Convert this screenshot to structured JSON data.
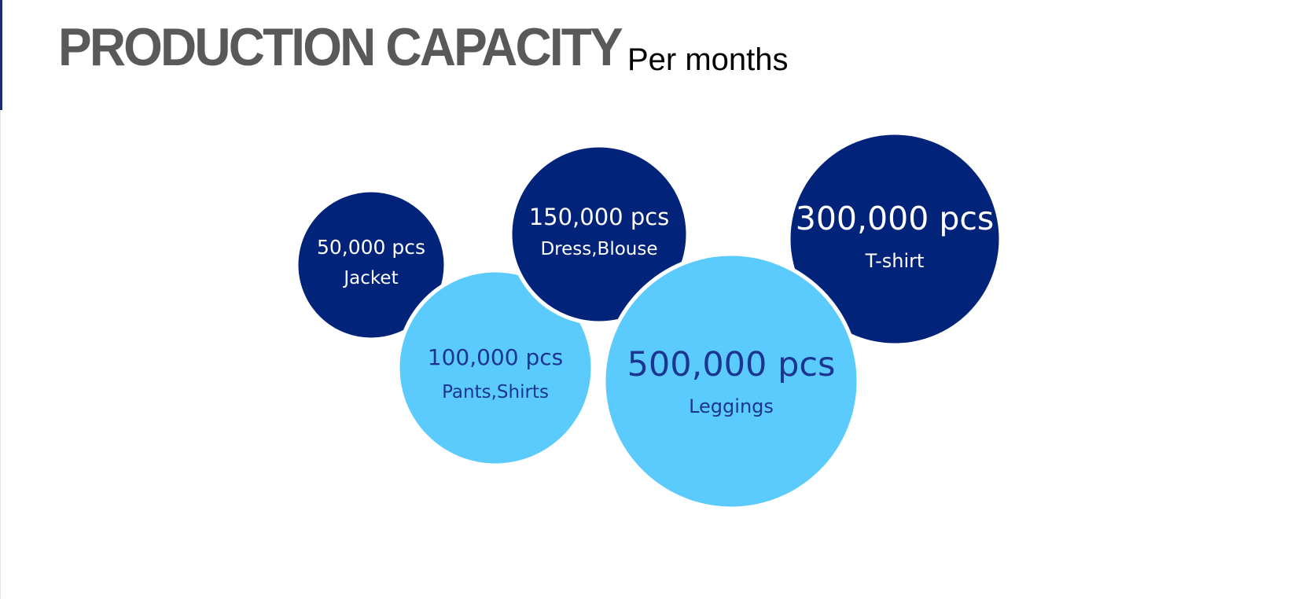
{
  "header": {
    "title": "PRODUCTION CAPACITY",
    "subtitle": "Per months"
  },
  "colors": {
    "dark_blue": "#02237a",
    "light_blue": "#5bcbfd",
    "title_gray": "#595959",
    "separator": "#ffffff"
  },
  "chart_data": {
    "type": "bubble",
    "unit": "pcs",
    "series": [
      {
        "label": "Jacket",
        "value": 50000,
        "value_label": "50,000 pcs",
        "color": "#02237a"
      },
      {
        "label": "Pants,Shirts",
        "value": 100000,
        "value_label": "100,000 pcs",
        "color": "#5bcbfd"
      },
      {
        "label": "Dress,Blouse",
        "value": 150000,
        "value_label": "150,000 pcs",
        "color": "#02237a"
      },
      {
        "label": "Leggings",
        "value": 500000,
        "value_label": "500,000 pcs",
        "color": "#5bcbfd"
      },
      {
        "label": "T-shirt",
        "value": 300000,
        "value_label": "300,000 pcs",
        "color": "#02237a"
      }
    ]
  }
}
